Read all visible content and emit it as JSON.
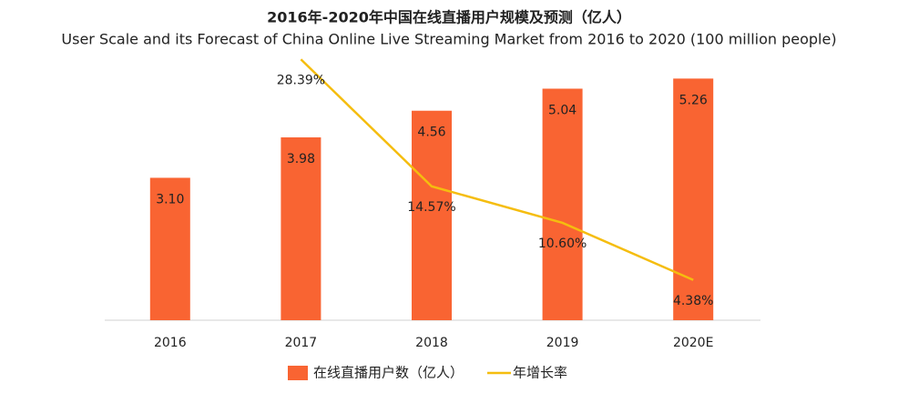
{
  "chart_data": {
    "type": "bar",
    "title": "2016年-2020年中国在线直播用户规模及预测（亿人）",
    "subtitle": "User Scale and its Forecast of China Online Live Streaming Market from 2016 to 2020 (100 million people)",
    "categories": [
      "2016",
      "2017",
      "2018",
      "2019",
      "2020E"
    ],
    "ylim": [
      0,
      6
    ],
    "y2lim": [
      0,
      30
    ],
    "series": [
      {
        "name": "在线直播用户数（亿人）",
        "type": "bar",
        "color": "#f96432",
        "values": [
          3.1,
          3.98,
          4.56,
          5.04,
          5.26
        ],
        "value_labels": [
          "3.10",
          "3.98",
          "4.56",
          "5.04",
          "5.26"
        ]
      },
      {
        "name": "年增长率",
        "type": "line",
        "axis": "y2",
        "color": "#f5bd0f",
        "values": [
          null,
          28.39,
          14.57,
          10.6,
          4.38
        ],
        "value_labels": [
          null,
          "28.39%",
          "14.57%",
          "10.60%",
          "4.38%"
        ]
      }
    ],
    "legend": "bottom"
  }
}
